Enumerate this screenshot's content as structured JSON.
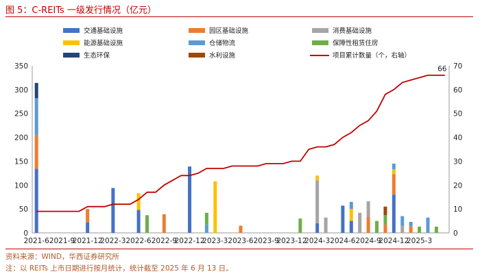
{
  "figure": {
    "title": "图 5：C-REITs 一级发行情况（亿元）",
    "source": "资料来源：WIND，华西证券研究所",
    "note": "注：以 REITs 上市日期进行按月统计，统计截至 2025 年 6 月 13 日。"
  },
  "chart_data": {
    "type": "bar",
    "stacked": true,
    "title": "C-REITs 一级发行情况（亿元）",
    "months": [
      "2021-6",
      "2021-7",
      "2021-8",
      "2021-9",
      "2021-10",
      "2021-11",
      "2021-12",
      "2022-1",
      "2022-2",
      "2022-3",
      "2022-4",
      "2022-5",
      "2022-6",
      "2022-7",
      "2022-8",
      "2022-9",
      "2022-10",
      "2022-11",
      "2022-12",
      "2023-1",
      "2023-2",
      "2023-3",
      "2023-4",
      "2023-5",
      "2023-6",
      "2023-7",
      "2023-8",
      "2023-9",
      "2023-10",
      "2023-11",
      "2023-12",
      "2024-1",
      "2024-2",
      "2024-3",
      "2024-4",
      "2024-5",
      "2024-6",
      "2024-7",
      "2024-8",
      "2024-9",
      "2024-10",
      "2024-11",
      "2024-12",
      "2025-1",
      "2025-2",
      "2025-3",
      "2025-4",
      "2025-5",
      "2025-6"
    ],
    "x_tick_labels": [
      "2021-6",
      "2021-9",
      "2021-12",
      "2022-3",
      "2022-6",
      "2022-9",
      "2022-12",
      "2023-3",
      "2023-6",
      "2023-9",
      "2023-12",
      "2024-3",
      "2024-6",
      "2024-9",
      "2024-12",
      "2025-3"
    ],
    "left_axis": {
      "min": 0,
      "max": 350,
      "ticks": [
        0,
        50,
        100,
        150,
        200,
        250,
        300,
        350
      ]
    },
    "right_axis": {
      "min": 0,
      "max": 70,
      "ticks": [
        0,
        10,
        20,
        30,
        40,
        50,
        60,
        70
      ]
    },
    "series": [
      {
        "name": "交通基础设施",
        "color": "#4472c4",
        "values": [
          134,
          0,
          0,
          0,
          0,
          0,
          22,
          0,
          0,
          94,
          0,
          0,
          48,
          0,
          0,
          0,
          0,
          0,
          139,
          0,
          0,
          0,
          0,
          0,
          0,
          0,
          0,
          0,
          0,
          0,
          0,
          0,
          0,
          20,
          0,
          0,
          57,
          25,
          0,
          0,
          0,
          0,
          80,
          0,
          0,
          0,
          0,
          0,
          0
        ]
      },
      {
        "name": "园区基础设施",
        "color": "#ed7d31",
        "values": [
          70,
          0,
          0,
          0,
          0,
          0,
          28,
          0,
          0,
          0,
          0,
          0,
          0,
          0,
          0,
          39,
          0,
          0,
          0,
          0,
          0,
          0,
          0,
          0,
          15,
          0,
          0,
          0,
          0,
          0,
          0,
          0,
          0,
          0,
          0,
          0,
          0,
          0,
          0,
          33,
          0,
          17,
          43,
          0,
          14,
          0,
          0,
          0,
          0
        ]
      },
      {
        "name": "消费基础设施",
        "color": "#a5a5a5",
        "values": [
          0,
          0,
          0,
          0,
          0,
          0,
          0,
          0,
          0,
          0,
          0,
          0,
          0,
          0,
          0,
          0,
          0,
          0,
          0,
          0,
          0,
          0,
          0,
          0,
          0,
          0,
          0,
          0,
          0,
          0,
          0,
          0,
          0,
          90,
          32,
          0,
          0,
          0,
          42,
          33,
          0,
          0,
          0,
          15,
          0,
          0,
          0,
          0,
          0
        ]
      },
      {
        "name": "能源基础设施",
        "color": "#ffc000",
        "values": [
          0,
          0,
          0,
          0,
          0,
          0,
          0,
          0,
          0,
          0,
          0,
          0,
          35,
          0,
          0,
          0,
          0,
          0,
          0,
          0,
          0,
          108,
          0,
          0,
          0,
          0,
          0,
          0,
          0,
          0,
          0,
          0,
          0,
          10,
          0,
          0,
          0,
          25,
          0,
          0,
          0,
          0,
          10,
          0,
          0,
          0,
          0,
          0,
          0
        ]
      },
      {
        "name": "仓储物流",
        "color": "#5b9bd5",
        "values": [
          78,
          0,
          0,
          0,
          0,
          0,
          0,
          0,
          0,
          0,
          0,
          0,
          0,
          0,
          0,
          0,
          0,
          0,
          0,
          0,
          17,
          0,
          0,
          0,
          0,
          0,
          0,
          0,
          0,
          0,
          0,
          0,
          0,
          0,
          0,
          0,
          0,
          15,
          0,
          0,
          0,
          0,
          12,
          20,
          9,
          0,
          32,
          0,
          0
        ]
      },
      {
        "name": "保障性租赁住房",
        "color": "#70ad47",
        "values": [
          0,
          0,
          0,
          0,
          0,
          0,
          0,
          0,
          0,
          0,
          0,
          0,
          0,
          37,
          0,
          0,
          0,
          0,
          0,
          0,
          25,
          0,
          0,
          0,
          0,
          0,
          0,
          0,
          0,
          0,
          0,
          30,
          0,
          0,
          0,
          0,
          0,
          0,
          0,
          0,
          25,
          0,
          0,
          0,
          0,
          13,
          0,
          13,
          0
        ]
      },
      {
        "name": "生态环保",
        "color": "#264478",
        "values": [
          32,
          0,
          0,
          0,
          0,
          0,
          0,
          0,
          0,
          0,
          0,
          0,
          0,
          0,
          0,
          0,
          0,
          0,
          0,
          0,
          0,
          0,
          0,
          0,
          0,
          0,
          0,
          0,
          0,
          0,
          0,
          0,
          0,
          0,
          0,
          0,
          0,
          0,
          0,
          0,
          0,
          0,
          0,
          0,
          0,
          0,
          0,
          0,
          0
        ]
      },
      {
        "name": "水利设施",
        "color": "#9e480e",
        "values": [
          0,
          0,
          0,
          0,
          0,
          0,
          0,
          0,
          0,
          0,
          0,
          0,
          0,
          0,
          0,
          0,
          0,
          0,
          0,
          0,
          0,
          0,
          0,
          0,
          0,
          0,
          0,
          0,
          0,
          0,
          0,
          0,
          0,
          0,
          0,
          0,
          0,
          0,
          0,
          0,
          0,
          0,
          0,
          0,
          0,
          0,
          0,
          0,
          0
        ]
      }
    ],
    "extra_stack": {
      "index": 41,
      "values": [
        {
          "color": "#70ad47",
          "value": 20
        },
        {
          "color": "#a5a5a5",
          "value": 0
        },
        {
          "color": "#ffc000",
          "value": 0
        },
        {
          "color": "#9e480e",
          "value": 18
        }
      ]
    },
    "line_series": {
      "name": "项目累计数量（个，右轴）",
      "color": "#c00000",
      "values": [
        9,
        9,
        9,
        9,
        9,
        9,
        11,
        11,
        11,
        12,
        12,
        12,
        14,
        17,
        17,
        20,
        22,
        24,
        24,
        25,
        27,
        27,
        27,
        28,
        28,
        28,
        28,
        29,
        29,
        29,
        30,
        30,
        35,
        36,
        36,
        37,
        40,
        42,
        45,
        47,
        51,
        58,
        60,
        63,
        64,
        65,
        66,
        66,
        66
      ],
      "end_label": "66"
    }
  },
  "colors": {
    "accent": "#c00000"
  }
}
